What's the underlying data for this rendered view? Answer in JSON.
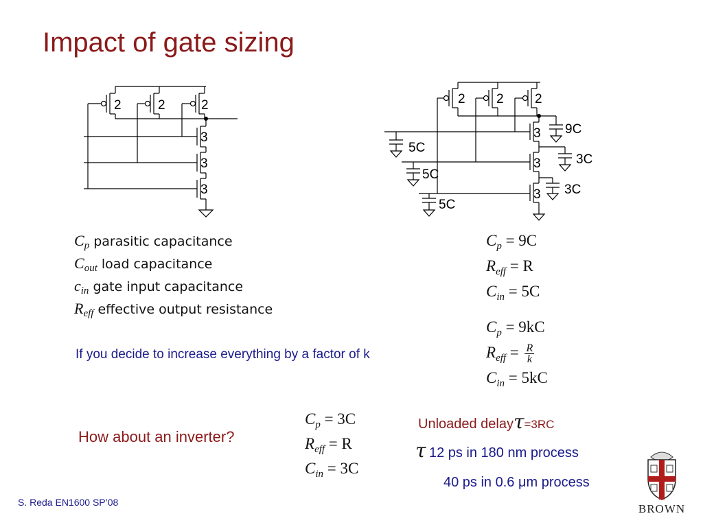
{
  "slide": {
    "title": "Impact of gate sizing",
    "footer": "S. Reda EN1600 SP’08",
    "logo_text": "BROWN"
  },
  "circuit_left": {
    "pmos_labels": [
      "2",
      "2",
      "2"
    ],
    "nmos_labels": [
      "3",
      "3",
      "3"
    ]
  },
  "circuit_right": {
    "pmos_labels": [
      "2",
      "2",
      "2"
    ],
    "nmos_labels": [
      "3",
      "3",
      "3"
    ],
    "cap_labels": [
      "9C",
      "3C",
      "3C",
      "5C",
      "5C",
      "5C"
    ]
  },
  "definitions": [
    {
      "sym": "C",
      "sub": "p",
      "text": " parasitic capacitance"
    },
    {
      "sym": "C",
      "sub": "out",
      "text": " load capacitance"
    },
    {
      "sym": "c",
      "sub": "in",
      "text": " gate input capacitance"
    },
    {
      "sym": "R",
      "sub": "eff",
      "text": " effective output resistance"
    }
  ],
  "equations_base": {
    "cp": " = 9C",
    "reff": " = R",
    "cin": " = 5C"
  },
  "equations_scaled": {
    "cp": " = 9kC",
    "reff": " = ",
    "reff_num": "R",
    "reff_den": "k",
    "cin": " = 5kC"
  },
  "scale_note": "If you decide to increase everything by a factor of k",
  "inverter": {
    "question": "How about an inverter?",
    "cp": " = 3C",
    "reff": " = R",
    "cin": " = 3C"
  },
  "delay": {
    "unloaded_label": "Unloaded delay",
    "unloaded_value": "=3RC",
    "tau_symbol": "τ",
    "line1": "12 ps in 180 nm process",
    "line2": "40 ps in 0.6 μm process"
  },
  "colors": {
    "title": "#8b1a1a",
    "body_blue": "#1a1a8c",
    "logo_red": "#b01c1c"
  }
}
